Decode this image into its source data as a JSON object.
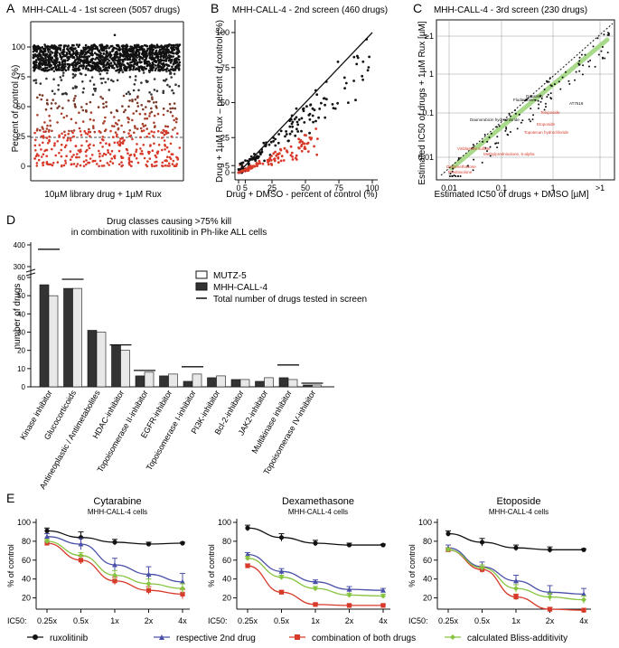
{
  "panel_letters": [
    "A",
    "B",
    "C",
    "D",
    "E"
  ],
  "colors": {
    "black": "#111111",
    "red": "#d83a2a",
    "blue": "#4a50a8",
    "green": "#86c440",
    "brown": "#7a3a2a",
    "light_green": "#a9d98a"
  },
  "panelA": {
    "title": "MHH-CALL-4 - 1st screen (5057 drugs)",
    "ylabel": "Percent of control (%)",
    "xlabel": "10µM library drug + 1µM Rux",
    "yticks": [
      "0",
      "25",
      "50",
      "75",
      "100"
    ]
  },
  "panelB": {
    "title": "MHH-CALL-4 - 2nd screen (460 drugs)",
    "ylabel": "Drug + 1µM Rux – percent of control (%)",
    "xlabel": "Drug + DMSO - percent of control (%)",
    "xticks": [
      "0",
      "5",
      "25",
      "50",
      "75",
      "100"
    ],
    "yticks": [
      "0",
      "5",
      "25",
      "50",
      "75",
      "100"
    ]
  },
  "panelC": {
    "title": "MHH-CALL-4 - 3rd screen (230 drugs)",
    "ylabel": "Estimated IC50 of drugs + 1µM Rux [µM]",
    "xlabel": "Estimated IC50 of drugs + DMSO [µM]",
    "xticks": [
      "0.01",
      "0.1",
      "1",
      ">1"
    ],
    "yticks": [
      "0.01",
      "0.1",
      "1",
      "≥1"
    ],
    "drug_labels": [
      {
        "text": "Etoposide",
        "red": true
      },
      {
        "text": "Topotecan hydrochloride",
        "red": true
      },
      {
        "text": "Teniposide",
        "red": true
      },
      {
        "text": "Vinblastine sulfate",
        "red": true
      },
      {
        "text": "Methylprednisolone, 6-alpha",
        "red": true
      },
      {
        "text": "Dexamethasone",
        "red": true
      },
      {
        "text": "Prednisolone",
        "red": true
      },
      {
        "text": "Fludarabine",
        "red": false
      },
      {
        "text": "Dasatinib",
        "red": false
      },
      {
        "text": "Daunorubicin hydrochloride",
        "red": false
      },
      {
        "text": "AT7519",
        "red": false
      }
    ]
  },
  "panelD": {
    "title_line1": "Drug classes causing >75% kill",
    "title_line2": "in combination with ruxolitinib in Ph-like ALL cells",
    "ylabel": "number of drugs",
    "yticks": [
      "0",
      "10",
      "20",
      "30",
      "40",
      "50",
      "60",
      "300",
      "400"
    ],
    "legend": [
      "MUTZ-5",
      "MHH-CALL-4",
      "Total number of drugs tested in screen"
    ],
    "chart_data": {
      "type": "bar",
      "categories": [
        "Kinase inhibitor",
        "Glucocorticoids",
        "Antineoplastic / Antimetabolites",
        "HDAC-inhibitor",
        "Topoisomerase II-inhibitor",
        "EGFR-inhibitor",
        "Topoisomerase I-inhibitor",
        "PI3K-inhibitor",
        "Bcl-2-inhibitor",
        "JAK2-inhibitor",
        "Multikinase inhibitor",
        "Topoisomerase IV-inhibitor"
      ],
      "series": [
        {
          "name": "MHH-CALL-4",
          "values": [
            56,
            54,
            31,
            23,
            6,
            6,
            3,
            5,
            4,
            3,
            5,
            1
          ]
        },
        {
          "name": "MUTZ-5",
          "values": [
            50,
            54,
            30,
            20,
            8,
            7,
            7,
            6,
            4,
            5,
            4,
            1
          ]
        },
        {
          "name": "Total number of drugs tested in screen",
          "values": [
            380,
            59,
            null,
            23,
            9,
            null,
            11,
            null,
            null,
            null,
            12,
            2
          ]
        }
      ],
      "ylim": [
        0,
        400
      ]
    }
  },
  "panelE": {
    "ylabel": "% of control",
    "ic50_label": "IC50:",
    "xticks": [
      "0.25x",
      "0.5x",
      "1x",
      "2x",
      "4x"
    ],
    "yticks": [
      "20",
      "40",
      "60",
      "80",
      "100"
    ],
    "legend": [
      "ruxolitinib",
      "respective 2nd drug",
      "combination of both drugs",
      "calculated Bliss-additivity"
    ],
    "chart_data": [
      {
        "type": "line",
        "title": "Cytarabine",
        "subtitle": "MHH-CALL-4 cells",
        "x": [
          "0.25x",
          "0.5x",
          "1x",
          "2x",
          "4x"
        ],
        "ylim": [
          0,
          100
        ],
        "series": [
          {
            "name": "ruxolitinib",
            "values": [
              91,
              84,
              79,
              77,
              78
            ],
            "errors": [
              3,
              6,
              3,
              2,
              1
            ]
          },
          {
            "name": "respective 2nd drug",
            "values": [
              85,
              77,
              55,
              45,
              37
            ],
            "errors": [
              3,
              6,
              7,
              8,
              9
            ]
          },
          {
            "name": "combination of both drugs",
            "values": [
              78,
              60,
              38,
              28,
              24
            ],
            "errors": [
              2,
              4,
              4,
              4,
              5
            ]
          },
          {
            "name": "calculated Bliss-additivity",
            "values": [
              80,
              65,
              44,
              35,
              30
            ],
            "errors": [
              2,
              3,
              5,
              5,
              5
            ]
          }
        ]
      },
      {
        "type": "line",
        "title": "Dexamethasone",
        "subtitle": "MHH-CALL-4 cells",
        "x": [
          "0.25x",
          "0.5x",
          "1x",
          "2x",
          "4x"
        ],
        "ylim": [
          0,
          100
        ],
        "series": [
          {
            "name": "ruxolitinib",
            "values": [
              94,
              84,
              78,
              76,
              76
            ],
            "errors": [
              3,
              4,
              3,
              2,
              1
            ]
          },
          {
            "name": "respective 2nd drug",
            "values": [
              66,
              48,
              37,
              29,
              28
            ],
            "errors": [
              2,
              3,
              2,
              3,
              2
            ]
          },
          {
            "name": "combination of both drugs",
            "values": [
              54,
              26,
              13,
              12,
              12
            ],
            "errors": [
              2,
              2,
              1,
              1,
              1
            ]
          },
          {
            "name": "calculated Bliss-additivity",
            "values": [
              62,
              42,
              30,
              23,
              22
            ],
            "errors": [
              2,
              2,
              2,
              2,
              2
            ]
          }
        ]
      },
      {
        "type": "line",
        "title": "Etoposide",
        "subtitle": "MHH-CALL-4 cells",
        "x": [
          "0.25x",
          "0.5x",
          "1x",
          "2x",
          "4x"
        ],
        "ylim": [
          0,
          100
        ],
        "series": [
          {
            "name": "ruxolitinib",
            "values": [
              88,
              79,
              73,
              71,
              71
            ],
            "errors": [
              3,
              4,
              3,
              3,
              1
            ]
          },
          {
            "name": "respective 2nd drug",
            "values": [
              73,
              53,
              38,
              26,
              24
            ],
            "errors": [
              3,
              5,
              6,
              7,
              6
            ]
          },
          {
            "name": "combination of both drugs",
            "values": [
              71,
              50,
              21,
              8,
              7
            ],
            "errors": [
              2,
              3,
              3,
              2,
              1
            ]
          },
          {
            "name": "calculated Bliss-additivity",
            "values": [
              71,
              52,
              30,
              21,
              18
            ],
            "errors": [
              2,
              3,
              4,
              4,
              4
            ]
          }
        ]
      }
    ]
  }
}
